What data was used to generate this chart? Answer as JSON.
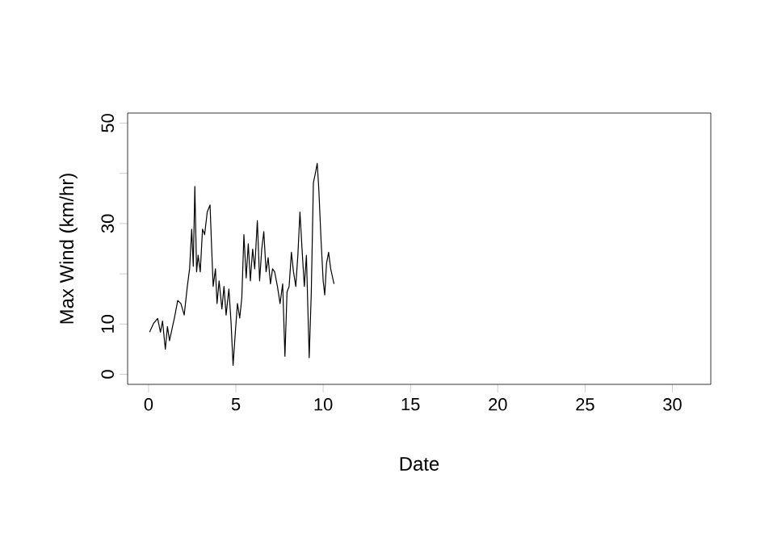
{
  "chart_data": {
    "type": "line",
    "xlabel": "Date",
    "ylabel": "Max Wind (km/hr)",
    "xlim": [
      -1.2,
      32.2
    ],
    "ylim": [
      -2,
      52
    ],
    "xticks": [
      0,
      5,
      10,
      15,
      20,
      25,
      30
    ],
    "yticks": [
      0,
      10,
      {
        "value": 20,
        "label": null
      },
      30,
      {
        "value": 40,
        "label": null
      },
      50
    ],
    "series": [
      {
        "color": "#000000",
        "x": [
          0.06,
          0.28,
          0.52,
          0.68,
          0.8,
          0.96,
          1.08,
          1.2,
          1.36,
          1.48,
          1.67,
          1.85,
          2.04,
          2.22,
          2.35,
          2.47,
          2.56,
          2.65,
          2.75,
          2.84,
          2.96,
          3.09,
          3.21,
          3.36,
          3.52,
          3.61,
          3.7,
          3.83,
          3.92,
          4.04,
          4.2,
          4.32,
          4.44,
          4.6,
          4.72,
          4.84,
          4.97,
          5.09,
          5.22,
          5.34,
          5.46,
          5.59,
          5.71,
          5.83,
          5.96,
          6.08,
          6.23,
          6.36,
          6.48,
          6.6,
          6.73,
          6.85,
          6.98,
          7.1,
          7.22,
          7.38,
          7.53,
          7.68,
          7.81,
          7.93,
          8.05,
          8.18,
          8.3,
          8.43,
          8.55,
          8.67,
          8.8,
          8.92,
          9.04,
          9.2,
          9.32,
          9.44,
          9.57,
          9.66,
          9.75,
          9.88,
          10.0,
          10.09,
          10.19,
          10.31,
          10.43,
          10.62
        ],
        "values": [
          8.4,
          10.1,
          11.1,
          8.4,
          10.6,
          5.0,
          9.5,
          6.7,
          9.3,
          11.2,
          14.7,
          14.1,
          11.8,
          17.5,
          21.0,
          28.9,
          21.5,
          37.4,
          20.4,
          23.7,
          20.4,
          28.9,
          27.8,
          32.3,
          33.7,
          25.4,
          17.5,
          21.0,
          14.1,
          18.6,
          13.0,
          17.5,
          11.8,
          17.0,
          10.6,
          1.8,
          8.4,
          14.1,
          11.2,
          15.2,
          27.8,
          19.2,
          26.0,
          18.6,
          24.9,
          21.0,
          30.6,
          18.6,
          24.9,
          28.4,
          20.4,
          23.2,
          18.0,
          21.0,
          20.4,
          17.5,
          14.1,
          18.0,
          3.6,
          16.4,
          17.5,
          24.3,
          20.4,
          17.5,
          23.7,
          32.3,
          24.3,
          17.5,
          23.7,
          3.3,
          16.4,
          38.1,
          40.3,
          42.0,
          36.9,
          26.6,
          18.6,
          15.8,
          22.0,
          24.3,
          21.0,
          18.0
        ]
      }
    ]
  }
}
